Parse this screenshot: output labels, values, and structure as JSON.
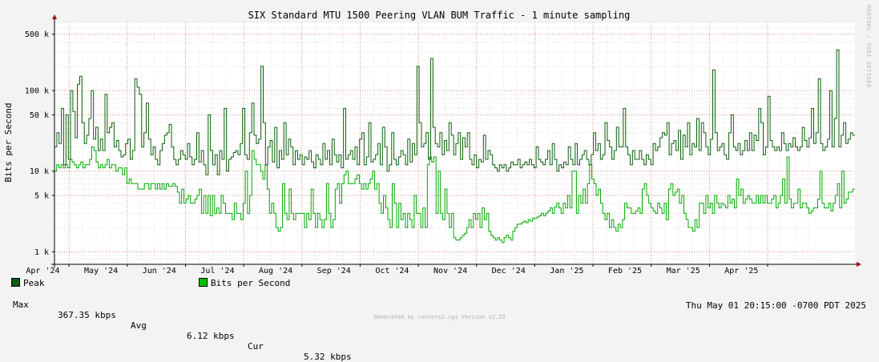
{
  "chart_data": {
    "type": "line",
    "title": "SIX Standard MTU 1500 Peering VLAN BUM Traffic - 1 minute sampling",
    "ylabel": "Bits per Second",
    "yscale": "log",
    "ylim": [
      700,
      700000
    ],
    "y_ticks": [
      {
        "value": 1000,
        "label": "1 k"
      },
      {
        "value": 5000,
        "label": "5 k"
      },
      {
        "value": 10000,
        "label": "10 k"
      },
      {
        "value": 50000,
        "label": "50 k"
      },
      {
        "value": 100000,
        "label": "100 k"
      },
      {
        "value": 500000,
        "label": "500 k"
      }
    ],
    "x_ticks": [
      "Apr '24",
      "May '24",
      "Jun '24",
      "Jul '24",
      "Aug '24",
      "Sep '24",
      "Oct '24",
      "Nov '24",
      "Dec '24",
      "Jan '25",
      "Feb '25",
      "Mar '25",
      "Apr '25"
    ],
    "x_start_month_position": 0.75,
    "grid": true,
    "series": [
      {
        "name": "Peak",
        "color": "#0b5e0b",
        "values": [
          20000,
          30000,
          22000,
          60000,
          12000,
          50000,
          14000,
          100000,
          55000,
          26000,
          120000,
          150000,
          40000,
          22000,
          28000,
          45000,
          100000,
          25000,
          35000,
          18000,
          25000,
          18000,
          90000,
          30000,
          35000,
          40000,
          20000,
          24000,
          18000,
          15000,
          16000,
          22000,
          25000,
          14000,
          18000,
          140000,
          110000,
          90000,
          20000,
          30000,
          70000,
          25000,
          16000,
          20000,
          14000,
          12000,
          18000,
          22000,
          28000,
          30000,
          38000,
          20000,
          14000,
          12000,
          14000,
          18000,
          16000,
          14000,
          22000,
          15000,
          12000,
          14000,
          30000,
          13000,
          18000,
          12000,
          9000,
          50000,
          18000,
          12000,
          16000,
          9000,
          18000,
          14000,
          60000,
          10000,
          14000,
          15000,
          17000,
          18000,
          16000,
          22000,
          60000,
          16000,
          14000,
          30000,
          70000,
          28000,
          22000,
          25000,
          200000,
          40000,
          12000,
          20000,
          24000,
          13000,
          35000,
          11000,
          18000,
          14000,
          40000,
          16000,
          25000,
          20000,
          12000,
          18000,
          14000,
          16000,
          12000,
          15000,
          14000,
          18000,
          13000,
          11000,
          16000,
          14000,
          12000,
          22000,
          14000,
          18000,
          12000,
          25000,
          16000,
          13000,
          16000,
          11000,
          60000,
          14000,
          16000,
          18000,
          14000,
          20000,
          12000,
          25000,
          30000,
          12000,
          15000,
          40000,
          13000,
          14000,
          16000,
          22000,
          12000,
          35000,
          20000,
          10000,
          12000,
          30000,
          14000,
          12000,
          15000,
          18000,
          16000,
          12000,
          25000,
          13000,
          22000,
          16000,
          200000,
          40000,
          20000,
          22000,
          30000,
          14000,
          250000,
          35000,
          22000,
          20000,
          30000,
          16000,
          24000,
          18000,
          40000,
          28000,
          16000,
          22000,
          30000,
          14000,
          26000,
          20000,
          30000,
          14000,
          12000,
          16000,
          11000,
          14000,
          13000,
          28000,
          14000,
          18000,
          16000,
          12000,
          11000,
          10000,
          12000,
          11000,
          12000,
          10000,
          11000,
          13000,
          12000,
          12000,
          14000,
          11000,
          12000,
          13000,
          12000,
          14000,
          12000,
          11000,
          20000,
          14000,
          13000,
          12000,
          14000,
          18000,
          12000,
          22000,
          14000,
          10000,
          12000,
          11000,
          13000,
          12000,
          20000,
          14000,
          12000,
          22000,
          12000,
          14000,
          16000,
          18000,
          14000,
          12000,
          16000,
          30000,
          18000,
          22000,
          14000,
          16000,
          40000,
          24000,
          20000,
          14000,
          18000,
          35000,
          20000,
          20000,
          60000,
          20000,
          16000,
          12000,
          18000,
          14000,
          14000,
          18000,
          14000,
          12000,
          16000,
          14000,
          12000,
          22000,
          18000,
          20000,
          26000,
          30000,
          28000,
          40000,
          16000,
          22000,
          24000,
          18000,
          32000,
          14000,
          28000,
          20000,
          40000,
          16000,
          22000,
          20000,
          45000,
          18000,
          40000,
          30000,
          20000,
          16000,
          25000,
          180000,
          30000,
          18000,
          20000,
          22000,
          16000,
          14000,
          30000,
          50000,
          20000,
          18000,
          22000,
          16000,
          18000,
          24000,
          18000,
          30000,
          18000,
          28000,
          24000,
          60000,
          40000,
          16000,
          20000,
          85000,
          24000,
          20000,
          18000,
          20000,
          18000,
          30000,
          22000,
          18000,
          22000,
          20000,
          26000,
          20000,
          18000,
          20000,
          35000,
          24000,
          20000,
          26000,
          60000,
          22000,
          30000,
          140000,
          22000,
          18000,
          20000,
          25000,
          100000,
          20000,
          45000,
          320000,
          20000,
          28000,
          40000,
          22000,
          25000,
          30000,
          28000
        ]
      },
      {
        "name": "Bits per Second",
        "color": "#00a800",
        "values": [
          10000,
          12000,
          11000,
          12000,
          11000,
          12000,
          11000,
          14000,
          13000,
          12000,
          11000,
          12000,
          13000,
          11000,
          12000,
          12000,
          14000,
          20000,
          18000,
          13000,
          11000,
          12000,
          11000,
          12000,
          14000,
          11000,
          12000,
          12000,
          10000,
          11000,
          11000,
          9000,
          11000,
          7000,
          8000,
          7000,
          7000,
          7000,
          6000,
          6000,
          6000,
          7000,
          7000,
          6000,
          7000,
          7000,
          6000,
          7000,
          6000,
          7000,
          6000,
          7000,
          6500,
          6500,
          7000,
          6500,
          5500,
          4000,
          6000,
          4000,
          4500,
          5000,
          4000,
          4000,
          4500,
          5000,
          6000,
          3000,
          5000,
          3000,
          5000,
          2800,
          5000,
          3000,
          3500,
          3000,
          5000,
          4000,
          3000,
          3000,
          3000,
          2500,
          4000,
          3000,
          3000,
          2500,
          4000,
          10000,
          3000,
          5000,
          18000,
          14000,
          12000,
          12000,
          10000,
          8000,
          12000,
          6000,
          3000,
          4000,
          3000,
          2000,
          1800,
          2000,
          7000,
          3000,
          2500,
          6000,
          3000,
          2500,
          3000,
          3000,
          3000,
          3000,
          2000,
          3000,
          2500,
          6000,
          3000,
          2000,
          3000,
          2500,
          2000,
          2500,
          7000,
          3000,
          2000,
          2500,
          6000,
          7000,
          4000,
          7000,
          9000,
          10000,
          7000,
          7000,
          7000,
          8000,
          9000,
          7000,
          6000,
          7000,
          6000,
          7000,
          8000,
          10000,
          6000,
          7000,
          4000,
          3000,
          5000,
          3500,
          2500,
          2000,
          7000,
          4000,
          2000,
          4000,
          2500,
          3000,
          2000,
          3000,
          2500,
          2000,
          5000,
          3000,
          3000,
          2000,
          3500,
          2000,
          12000,
          15000,
          13000,
          15000,
          3000,
          10000,
          3000,
          2500,
          6000,
          3000,
          2000,
          3000,
          1500,
          1400,
          1400,
          1500,
          1600,
          1700,
          2000,
          2500,
          2000,
          3000,
          2500,
          3000,
          2000,
          3500,
          2500,
          3000,
          1800,
          1600,
          1500,
          1400,
          1500,
          1400,
          1300,
          1500,
          1600,
          1500,
          1400,
          1800,
          2000,
          2200,
          2200,
          2300,
          2400,
          2300,
          2500,
          2400,
          2600,
          2600,
          2700,
          2800,
          3000,
          2800,
          3000,
          3200,
          3500,
          3000,
          3600,
          4000,
          3500,
          3000,
          4000,
          3500,
          5000,
          3500,
          10000,
          10000,
          3000,
          5000,
          4000,
          6000,
          4000,
          7000,
          12000,
          8000,
          7000,
          5000,
          6000,
          4000,
          3000,
          2500,
          3000,
          2000,
          2500,
          2000,
          1800,
          2200,
          2000,
          2500,
          4000,
          3500,
          3500,
          3000,
          3000,
          3200,
          3500,
          3000,
          6000,
          7000,
          5000,
          4000,
          3500,
          3200,
          3000,
          4000,
          3500,
          3000,
          4000,
          2500,
          6000,
          7000,
          5000,
          5500,
          6000,
          4000,
          5000,
          3000,
          2500,
          2000,
          2000,
          1800,
          2500,
          2000,
          4000,
          4000,
          3000,
          5000,
          3500,
          4000,
          3000,
          5000,
          4000,
          3500,
          4000,
          3800,
          3500,
          5000,
          4000,
          4500,
          3500,
          8000,
          5000,
          6000,
          4000,
          4500,
          5000,
          4500,
          4000,
          4000,
          5000,
          4000,
          5000,
          4000,
          5000,
          4000,
          4000,
          4500,
          5000,
          3500,
          4000,
          5000,
          8000,
          4000,
          15000,
          4500,
          3500,
          4000,
          4000,
          6000,
          3500,
          4000,
          4000,
          3500,
          3000,
          3200,
          3500,
          3500,
          4500,
          10000,
          4000,
          3500,
          3500,
          4000,
          3200,
          4000,
          5000,
          7000,
          3500,
          10000,
          4000,
          4500,
          5500,
          5500,
          6000
        ]
      }
    ]
  },
  "legend": {
    "peak_label": "Peak",
    "bps_label": "Bits per Second",
    "peak_color": "#0b5e0b",
    "bps_color": "#00a800"
  },
  "stats": {
    "max_label": "Max",
    "max_value": "367.35 kbps",
    "avg_label": "Avg",
    "avg_value": "6.12 kbps",
    "cur_label": "Cur",
    "cur_value": "5.32 kbps"
  },
  "timestamp": "Thu May 01 20:15:00 -0700 PDT 2025",
  "footer": "Generated by routers2.cgi Version v2.23",
  "watermark": "RRDTOOL / TOBI OETIKER"
}
